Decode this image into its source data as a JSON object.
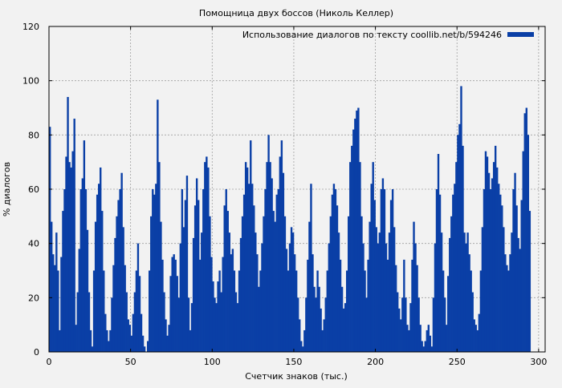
{
  "chart_data": {
    "type": "bar",
    "title": "Помощница двух боссов (Николь Келлер)",
    "xlabel": "Счетчик знаков (тыс.)",
    "ylabel": "% диалогов",
    "xlim": [
      0,
      304
    ],
    "ylim": [
      0,
      120
    ],
    "x_ticks": [
      0,
      50,
      100,
      150,
      200,
      250,
      300
    ],
    "y_ticks": [
      0,
      20,
      40,
      60,
      80,
      100,
      120
    ],
    "grid": true,
    "legend_position": "top-right",
    "series": [
      {
        "name": "Использование диалогов по тексту coollib.net/b/594246",
        "color": "#0a3fa6",
        "x_start": 0,
        "x_step": 1,
        "values": [
          83,
          48,
          36,
          32,
          44,
          30,
          8,
          35,
          52,
          60,
          72,
          94,
          70,
          68,
          74,
          86,
          10,
          22,
          38,
          60,
          64,
          78,
          60,
          45,
          22,
          8,
          2,
          30,
          48,
          58,
          62,
          68,
          52,
          30,
          14,
          8,
          4,
          8,
          20,
          32,
          42,
          50,
          56,
          60,
          66,
          46,
          32,
          22,
          12,
          10,
          6,
          14,
          22,
          30,
          40,
          28,
          14,
          6,
          2,
          0,
          4,
          30,
          50,
          60,
          58,
          62,
          93,
          70,
          48,
          34,
          22,
          12,
          6,
          10,
          28,
          35,
          36,
          34,
          28,
          20,
          40,
          60,
          46,
          56,
          65,
          20,
          8,
          18,
          42,
          54,
          64,
          56,
          34,
          44,
          60,
          70,
          72,
          68,
          50,
          35,
          26,
          20,
          18,
          26,
          30,
          22,
          35,
          54,
          60,
          52,
          44,
          36,
          38,
          30,
          22,
          18,
          30,
          42,
          50,
          58,
          70,
          68,
          62,
          78,
          62,
          54,
          44,
          36,
          24,
          30,
          40,
          50,
          60,
          70,
          80,
          70,
          64,
          52,
          48,
          58,
          60,
          72,
          78,
          66,
          50,
          38,
          30,
          40,
          46,
          44,
          36,
          30,
          20,
          12,
          4,
          2,
          8,
          20,
          34,
          48,
          62,
          36,
          24,
          20,
          30,
          24,
          16,
          8,
          12,
          20,
          30,
          40,
          50,
          58,
          62,
          60,
          54,
          44,
          34,
          24,
          16,
          18,
          30,
          50,
          70,
          76,
          82,
          86,
          89,
          90,
          70,
          50,
          40,
          30,
          20,
          34,
          48,
          62,
          70,
          56,
          46,
          40,
          44,
          60,
          64,
          60,
          40,
          34,
          44,
          56,
          60,
          46,
          32,
          22,
          16,
          12,
          20,
          34,
          20,
          10,
          8,
          18,
          34,
          48,
          40,
          32,
          20,
          10,
          4,
          2,
          4,
          8,
          10,
          6,
          2,
          20,
          40,
          60,
          73,
          58,
          44,
          30,
          20,
          10,
          28,
          42,
          50,
          58,
          62,
          70,
          80,
          84,
          98,
          76,
          44,
          40,
          44,
          36,
          30,
          22,
          12,
          10,
          8,
          14,
          30,
          46,
          60,
          74,
          72,
          66,
          60,
          64,
          70,
          76,
          68,
          62,
          58,
          54,
          46,
          36,
          32,
          30,
          36,
          44,
          60,
          66,
          54,
          42,
          38,
          56,
          74,
          88,
          90,
          80,
          52
        ]
      }
    ]
  }
}
